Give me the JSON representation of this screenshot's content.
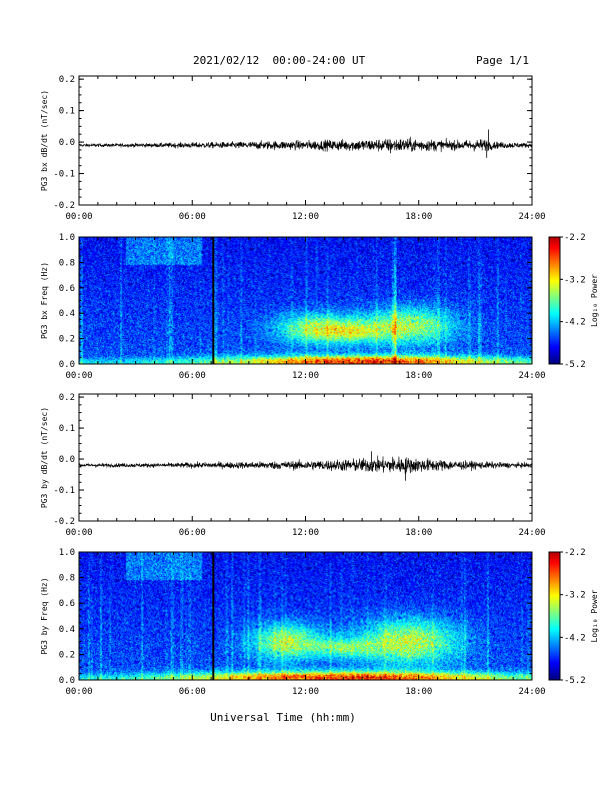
{
  "header": {
    "title": "2021/02/12  00:00-24:00 UT",
    "page": "Page 1/1"
  },
  "footer": {
    "xlabel": "Universal Time (hh:mm)"
  },
  "chart_data": [
    {
      "type": "line",
      "ylabel": "PG3 bx dB/dt (nT/sec)",
      "xticks": [
        "00:00",
        "06:00",
        "12:00",
        "18:00",
        "24:00"
      ],
      "yticks": [
        "0.2",
        "0.1",
        "0.0",
        "-0.1",
        "-0.2"
      ],
      "ylim": [
        -0.2,
        0.21
      ],
      "xlim": [
        0,
        24
      ],
      "series": [
        {
          "baseline": -0.01,
          "envelope": [
            {
              "x": 0,
              "a": 0.004
            },
            {
              "x": 4,
              "a": 0.006
            },
            {
              "x": 6,
              "a": 0.008
            },
            {
              "x": 8,
              "a": 0.009
            },
            {
              "x": 10,
              "a": 0.012
            },
            {
              "x": 12,
              "a": 0.013
            },
            {
              "x": 14,
              "a": 0.016
            },
            {
              "x": 16,
              "a": 0.018
            },
            {
              "x": 17,
              "a": 0.02
            },
            {
              "x": 18,
              "a": 0.018
            },
            {
              "x": 20,
              "a": 0.013
            },
            {
              "x": 21.5,
              "a": 0.018
            },
            {
              "x": 22,
              "a": 0.01
            },
            {
              "x": 24,
              "a": 0.006
            }
          ],
          "spikes": [
            {
              "x": 21.7,
              "y": 0.04
            },
            {
              "x": 21.6,
              "y": -0.05
            },
            {
              "x": 16.5,
              "y": -0.035
            }
          ]
        }
      ]
    },
    {
      "type": "heatmap",
      "ylabel": "PG3 bx Freq (Hz)",
      "xticks": [
        "00:00",
        "06:00",
        "12:00",
        "18:00",
        "24:00"
      ],
      "yticks": [
        "1.0",
        "0.8",
        "0.6",
        "0.4",
        "0.2",
        "0.0"
      ],
      "ylim": [
        0,
        1.0
      ],
      "xlim": [
        0,
        24
      ],
      "colorbar": {
        "label": "Log₁₀ Power",
        "ticks": [
          "-2.2",
          "-3.2",
          "-4.2",
          "-5.2"
        ],
        "range": [
          -5.2,
          -2.2
        ]
      },
      "blobs": [
        {
          "x": 12.5,
          "y": 0.28,
          "sx": 1.8,
          "sy": 0.1,
          "v": -3.4
        },
        {
          "x": 17.5,
          "y": 0.3,
          "sx": 2.0,
          "sy": 0.12,
          "v": -3.3
        },
        {
          "x": 14.5,
          "y": 0.25,
          "sx": 1.5,
          "sy": 0.07,
          "v": -3.7
        },
        {
          "x": 15,
          "y": 0.02,
          "sx": 6,
          "sy": 0.04,
          "v": -2.8
        }
      ],
      "data_gap_x": 7.1
    },
    {
      "type": "line",
      "ylabel": "PG3 by dB/dt (nT/sec)",
      "xticks": [
        "00:00",
        "06:00",
        "12:00",
        "18:00",
        "24:00"
      ],
      "yticks": [
        "0.2",
        "0.1",
        "0.0",
        "-0.1",
        "-0.2"
      ],
      "ylim": [
        -0.2,
        0.21
      ],
      "xlim": [
        0,
        24
      ],
      "series": [
        {
          "baseline": -0.02,
          "envelope": [
            {
              "x": 0,
              "a": 0.005
            },
            {
              "x": 4,
              "a": 0.006
            },
            {
              "x": 6,
              "a": 0.008
            },
            {
              "x": 8,
              "a": 0.009
            },
            {
              "x": 10,
              "a": 0.011
            },
            {
              "x": 12,
              "a": 0.013
            },
            {
              "x": 14,
              "a": 0.017
            },
            {
              "x": 16,
              "a": 0.022
            },
            {
              "x": 17,
              "a": 0.025
            },
            {
              "x": 18,
              "a": 0.02
            },
            {
              "x": 20,
              "a": 0.013
            },
            {
              "x": 22,
              "a": 0.009
            },
            {
              "x": 24,
              "a": 0.006
            }
          ],
          "spikes": [
            {
              "x": 17.3,
              "y": -0.07
            },
            {
              "x": 15.5,
              "y": 0.025
            }
          ]
        }
      ]
    },
    {
      "type": "heatmap",
      "ylabel": "PG3 by Freq (Hz)",
      "xticks": [
        "00:00",
        "06:00",
        "12:00",
        "18:00",
        "24:00"
      ],
      "yticks": [
        "1.0",
        "0.8",
        "0.6",
        "0.4",
        "0.2",
        "0.0"
      ],
      "ylim": [
        0,
        1.0
      ],
      "xlim": [
        0,
        24
      ],
      "colorbar": {
        "label": "Log₁₀ Power",
        "ticks": [
          "-2.2",
          "-3.2",
          "-4.2",
          "-5.2"
        ],
        "range": [
          -5.2,
          -2.2
        ]
      },
      "blobs": [
        {
          "x": 11,
          "y": 0.3,
          "sx": 1.6,
          "sy": 0.12,
          "v": -3.3
        },
        {
          "x": 17.5,
          "y": 0.3,
          "sx": 2.2,
          "sy": 0.15,
          "v": -3.2
        },
        {
          "x": 14,
          "y": 0.25,
          "sx": 1.5,
          "sy": 0.06,
          "v": -3.7
        },
        {
          "x": 14,
          "y": 0.02,
          "sx": 7,
          "sy": 0.04,
          "v": -2.8
        }
      ],
      "data_gap_x": 7.1
    }
  ]
}
